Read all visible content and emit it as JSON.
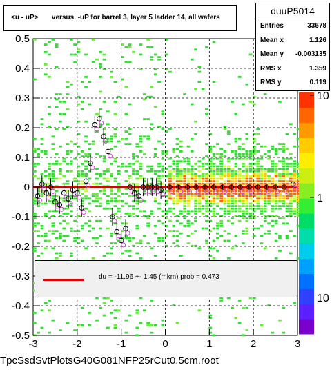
{
  "title": "<u - uP>       versus  -uP for barrel 3, layer 5 ladder 14, all wafers",
  "stats": {
    "name": "duuP5014",
    "rows": [
      {
        "label": "Entries",
        "value": "33678"
      },
      {
        "label": "Mean x",
        "value": "1.126"
      },
      {
        "label": "Mean y",
        "value": "-0.003135"
      },
      {
        "label": "RMS x",
        "value": "1.359"
      },
      {
        "label": "RMS y",
        "value": "0.119"
      }
    ]
  },
  "fit_legend": "du =  -11.96 +-  1.45 (mkm) prob = 0.473",
  "footer": "TpcSsdSvtPlotsG40G081NFP25rCut0.5cm.root",
  "colors": {
    "fit_line": "#e00000",
    "profile_open": "#000000",
    "profile_alt": "#cc44cc"
  },
  "chart_data": {
    "type": "heatmap",
    "xlim": [
      -3,
      3
    ],
    "ylim": [
      -0.5,
      0.5
    ],
    "x_ticks": [
      "-3",
      "-2",
      "-1",
      "0",
      "1",
      "2",
      "3"
    ],
    "y_ticks": [
      "-0.5",
      "-0.4",
      "-0.3",
      "-0.2",
      "-0.1",
      "0",
      "0.1",
      "0.2",
      "0.3",
      "0.4",
      "0.5"
    ],
    "z_scale": "log",
    "z_ticks": [
      "1",
      "10"
    ],
    "grid": true,
    "fit_line": {
      "x": [
        -3,
        3
      ],
      "y": [
        0,
        0
      ]
    },
    "profile": {
      "x": [
        -2.9,
        -2.8,
        -2.7,
        -2.6,
        -2.5,
        -2.4,
        -2.3,
        -2.2,
        -2.1,
        -2.0,
        -1.9,
        -1.8,
        -1.7,
        -1.6,
        -1.5,
        -1.4,
        -1.3,
        -1.2,
        -1.1,
        -1.0,
        -0.9,
        -0.8,
        -0.7,
        -0.6,
        -0.5,
        -0.4,
        -0.3,
        -0.2,
        -0.1,
        0.1,
        0.3,
        0.5,
        0.7,
        0.9,
        1.1,
        1.3,
        1.5,
        1.7,
        1.9,
        2.1,
        2.3,
        2.5,
        2.7,
        2.9
      ],
      "y": [
        -0.03,
        0.01,
        -0.02,
        0.0,
        -0.05,
        -0.06,
        -0.02,
        -0.04,
        -0.01,
        -0.02,
        -0.07,
        0.02,
        0.08,
        0.21,
        0.23,
        0.17,
        0.12,
        -0.1,
        -0.15,
        -0.18,
        -0.14,
        0.0,
        -0.02,
        -0.03,
        0.0,
        0.0,
        0.0,
        0.0,
        -0.01,
        0.0,
        0.0,
        0.0,
        0.0,
        0.0,
        0.0,
        0.0,
        0.0,
        0.0,
        0.0,
        0.0,
        0.0,
        0.0,
        0.0,
        0.01
      ]
    }
  }
}
